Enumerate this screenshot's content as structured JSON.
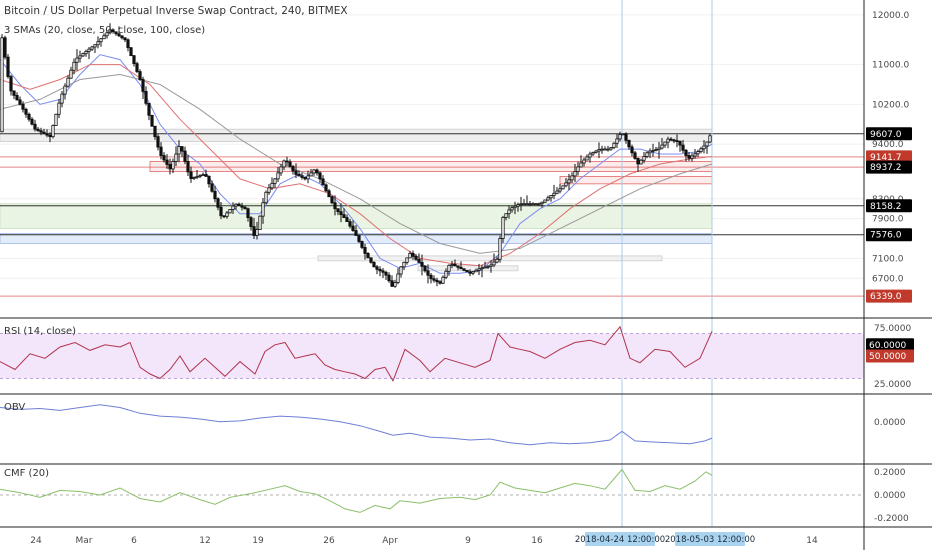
{
  "chart_data": {
    "type": "candlestick",
    "title": "Bitcoin / US Dollar Perpetual Inverse Swap Contract, 240, BITMEX",
    "ma_legend": "3 SMAs (20, close, 50, close, 100, close)",
    "x_labels": [
      "24",
      "Mar",
      "6",
      "12",
      "19",
      "26",
      "Apr",
      "9",
      "16",
      "2018-04-24 12:00:00",
      "2018-05-03 12:00:00",
      "14"
    ],
    "price_ticks": [
      12000.0,
      11000.0,
      10200.0,
      9400.0,
      8300.0,
      7900.0,
      7100.0,
      6700.0
    ],
    "price_ylim": [
      5900,
      12300
    ],
    "price_path": [
      [
        0,
        11800
      ],
      [
        10,
        10500
      ],
      [
        20,
        10200
      ],
      [
        35,
        9700
      ],
      [
        50,
        9550
      ],
      [
        60,
        10300
      ],
      [
        75,
        11100
      ],
      [
        95,
        11400
      ],
      [
        110,
        11700
      ],
      [
        125,
        11500
      ],
      [
        140,
        10700
      ],
      [
        150,
        9900
      ],
      [
        160,
        9200
      ],
      [
        170,
        8900
      ],
      [
        180,
        9400
      ],
      [
        190,
        8700
      ],
      [
        205,
        8800
      ],
      [
        215,
        8300
      ],
      [
        222,
        7900
      ],
      [
        235,
        8200
      ],
      [
        245,
        8100
      ],
      [
        255,
        7500
      ],
      [
        265,
        8400
      ],
      [
        275,
        8700
      ],
      [
        285,
        9100
      ],
      [
        295,
        8800
      ],
      [
        305,
        8700
      ],
      [
        315,
        8900
      ],
      [
        325,
        8500
      ],
      [
        335,
        8100
      ],
      [
        345,
        7900
      ],
      [
        355,
        7600
      ],
      [
        365,
        7200
      ],
      [
        375,
        6900
      ],
      [
        385,
        6800
      ],
      [
        393,
        6500
      ],
      [
        400,
        6900
      ],
      [
        410,
        7200
      ],
      [
        420,
        7000
      ],
      [
        430,
        6700
      ],
      [
        440,
        6600
      ],
      [
        450,
        7000
      ],
      [
        460,
        6900
      ],
      [
        470,
        6800
      ],
      [
        480,
        6900
      ],
      [
        490,
        6950
      ],
      [
        498,
        7100
      ],
      [
        502,
        7900
      ],
      [
        510,
        8100
      ],
      [
        520,
        8200
      ],
      [
        530,
        8200
      ],
      [
        540,
        8200
      ],
      [
        550,
        8350
      ],
      [
        560,
        8500
      ],
      [
        570,
        8700
      ],
      [
        580,
        9000
      ],
      [
        590,
        9200
      ],
      [
        600,
        9300
      ],
      [
        610,
        9300
      ],
      [
        622,
        9650
      ],
      [
        630,
        9300
      ],
      [
        638,
        9000
      ],
      [
        648,
        9250
      ],
      [
        658,
        9300
      ],
      [
        668,
        9500
      ],
      [
        678,
        9450
      ],
      [
        688,
        9100
      ],
      [
        698,
        9250
      ],
      [
        706,
        9400
      ],
      [
        712,
        9650
      ]
    ],
    "sma_paths": [
      {
        "name": "SMA 20",
        "color": "#7a8cf0",
        "points": [
          [
            0,
            11100
          ],
          [
            20,
            10600
          ],
          [
            40,
            10200
          ],
          [
            60,
            10300
          ],
          [
            80,
            10800
          ],
          [
            100,
            11200
          ],
          [
            120,
            11100
          ],
          [
            140,
            10600
          ],
          [
            160,
            9800
          ],
          [
            180,
            9300
          ],
          [
            200,
            9000
          ],
          [
            220,
            8400
          ],
          [
            240,
            8000
          ],
          [
            260,
            8000
          ],
          [
            280,
            8600
          ],
          [
            300,
            8800
          ],
          [
            320,
            8600
          ],
          [
            340,
            8200
          ],
          [
            360,
            7700
          ],
          [
            380,
            7100
          ],
          [
            400,
            6900
          ],
          [
            420,
            7000
          ],
          [
            440,
            6800
          ],
          [
            460,
            6800
          ],
          [
            480,
            6850
          ],
          [
            500,
            7200
          ],
          [
            520,
            7800
          ],
          [
            540,
            8100
          ],
          [
            560,
            8300
          ],
          [
            580,
            8700
          ],
          [
            600,
            9000
          ],
          [
            620,
            9300
          ],
          [
            640,
            9300
          ],
          [
            660,
            9200
          ],
          [
            680,
            9200
          ],
          [
            700,
            9250
          ],
          [
            712,
            9400
          ]
        ]
      },
      {
        "name": "SMA 50",
        "color": "#e07070",
        "points": [
          [
            0,
            10700
          ],
          [
            30,
            10500
          ],
          [
            60,
            10700
          ],
          [
            90,
            11000
          ],
          [
            120,
            11000
          ],
          [
            150,
            10600
          ],
          [
            180,
            9900
          ],
          [
            210,
            9300
          ],
          [
            240,
            8700
          ],
          [
            270,
            8500
          ],
          [
            300,
            8600
          ],
          [
            330,
            8400
          ],
          [
            360,
            8000
          ],
          [
            390,
            7500
          ],
          [
            420,
            7100
          ],
          [
            450,
            7000
          ],
          [
            480,
            6950
          ],
          [
            510,
            7200
          ],
          [
            540,
            7600
          ],
          [
            570,
            8100
          ],
          [
            600,
            8500
          ],
          [
            630,
            8800
          ],
          [
            660,
            9000
          ],
          [
            690,
            9100
          ],
          [
            712,
            9150
          ]
        ]
      },
      {
        "name": "SMA 100",
        "color": "#999999",
        "points": [
          [
            0,
            10100
          ],
          [
            40,
            10300
          ],
          [
            80,
            10700
          ],
          [
            120,
            10800
          ],
          [
            160,
            10600
          ],
          [
            200,
            10100
          ],
          [
            240,
            9500
          ],
          [
            280,
            9000
          ],
          [
            320,
            8700
          ],
          [
            360,
            8300
          ],
          [
            400,
            7800
          ],
          [
            440,
            7400
          ],
          [
            480,
            7200
          ],
          [
            520,
            7300
          ],
          [
            560,
            7700
          ],
          [
            600,
            8100
          ],
          [
            640,
            8500
          ],
          [
            680,
            8800
          ],
          [
            712,
            9000
          ]
        ]
      }
    ],
    "price_tags": [
      {
        "value": 9607.0,
        "label": "9607.0",
        "color": "#000000"
      },
      {
        "value": 9141.7,
        "label": "9141.7",
        "color": "#c0392b"
      },
      {
        "value": 8937.2,
        "label": "8937.2",
        "color": "#000000"
      },
      {
        "value": 8158.2,
        "label": "8158.2",
        "color": "#000000"
      },
      {
        "value": 7576.0,
        "label": "7576.0",
        "color": "#000000"
      },
      {
        "value": 6339.0,
        "label": "6339.0",
        "color": "#c0392b"
      }
    ],
    "zones": [
      {
        "from": 9450,
        "to": 9700,
        "x0": 0,
        "x1": 712,
        "fill": "#eeeeee",
        "stroke": "#cccccc"
      },
      {
        "from": 8850,
        "to": 9050,
        "x0": 150,
        "x1": 712,
        "fill": "#fdecec",
        "stroke": "#e06666"
      },
      {
        "from": 8600,
        "to": 8750,
        "x0": 560,
        "x1": 712,
        "fill": "#fdecec",
        "stroke": "#e06666"
      },
      {
        "from": 7700,
        "to": 8200,
        "x0": 0,
        "x1": 712,
        "fill": "#eaf4e4",
        "stroke": "#c8dfbb"
      },
      {
        "from": 7400,
        "to": 7600,
        "x0": 0,
        "x1": 712,
        "fill": "#e3ecfb",
        "stroke": "#9fb6e6"
      },
      {
        "from": 7050,
        "to": 7150,
        "x0": 318,
        "x1": 662,
        "fill": "#f1f1f1",
        "stroke": "#cccccc"
      },
      {
        "from": 6850,
        "to": 6950,
        "x0": 418,
        "x1": 518,
        "fill": "#f1f1f1",
        "stroke": "#cccccc"
      }
    ],
    "hlines": [
      {
        "value": 9607,
        "color": "#000000"
      },
      {
        "value": 9141.7,
        "color": "#e06666"
      },
      {
        "value": 8937.2,
        "color": "#e06666"
      },
      {
        "value": 8158.2,
        "color": "#000000"
      },
      {
        "value": 7576,
        "color": "#000000"
      },
      {
        "value": 6339,
        "color": "#e06666"
      }
    ],
    "rsi": {
      "label": "RSI (14, close)",
      "ticks": [
        75.0,
        25.0
      ],
      "tick_labels": [
        "75.0000",
        "25.0000"
      ],
      "ylim": [
        18,
        82
      ],
      "band": [
        30,
        70
      ],
      "tags": [
        {
          "value": 60.0,
          "label": "60.0000",
          "color": "#000000"
        },
        {
          "value": 50.0,
          "label": "50.0000",
          "color": "#c0392b"
        }
      ],
      "path": [
        [
          0,
          45
        ],
        [
          15,
          38
        ],
        [
          30,
          52
        ],
        [
          45,
          48
        ],
        [
          60,
          58
        ],
        [
          75,
          62
        ],
        [
          90,
          55
        ],
        [
          105,
          60
        ],
        [
          120,
          58
        ],
        [
          130,
          62
        ],
        [
          140,
          40
        ],
        [
          150,
          34
        ],
        [
          160,
          30
        ],
        [
          170,
          38
        ],
        [
          180,
          50
        ],
        [
          190,
          36
        ],
        [
          205,
          48
        ],
        [
          215,
          40
        ],
        [
          225,
          32
        ],
        [
          240,
          45
        ],
        [
          255,
          34
        ],
        [
          265,
          54
        ],
        [
          275,
          60
        ],
        [
          285,
          62
        ],
        [
          295,
          48
        ],
        [
          305,
          50
        ],
        [
          315,
          52
        ],
        [
          325,
          42
        ],
        [
          335,
          38
        ],
        [
          345,
          36
        ],
        [
          355,
          34
        ],
        [
          365,
          30
        ],
        [
          375,
          38
        ],
        [
          385,
          40
        ],
        [
          393,
          28
        ],
        [
          405,
          56
        ],
        [
          420,
          46
        ],
        [
          430,
          36
        ],
        [
          445,
          48
        ],
        [
          460,
          44
        ],
        [
          475,
          40
        ],
        [
          490,
          46
        ],
        [
          498,
          70
        ],
        [
          510,
          58
        ],
        [
          520,
          56
        ],
        [
          530,
          54
        ],
        [
          545,
          48
        ],
        [
          560,
          56
        ],
        [
          575,
          62
        ],
        [
          590,
          64
        ],
        [
          605,
          60
        ],
        [
          620,
          76
        ],
        [
          630,
          48
        ],
        [
          640,
          44
        ],
        [
          655,
          56
        ],
        [
          670,
          54
        ],
        [
          685,
          40
        ],
        [
          700,
          48
        ],
        [
          712,
          72
        ]
      ]
    },
    "obv": {
      "label": "OBV",
      "ticks": [
        0.0
      ],
      "tick_labels": [
        "0.0000"
      ],
      "ylim": [
        -80,
        50
      ],
      "zero_y": 0,
      "path": [
        [
          0,
          30
        ],
        [
          20,
          26
        ],
        [
          40,
          28
        ],
        [
          60,
          24
        ],
        [
          80,
          30
        ],
        [
          100,
          36
        ],
        [
          120,
          30
        ],
        [
          140,
          18
        ],
        [
          160,
          12
        ],
        [
          180,
          10
        ],
        [
          200,
          6
        ],
        [
          220,
          0
        ],
        [
          240,
          2
        ],
        [
          260,
          8
        ],
        [
          280,
          12
        ],
        [
          300,
          10
        ],
        [
          320,
          6
        ],
        [
          340,
          0
        ],
        [
          360,
          -8
        ],
        [
          380,
          -20
        ],
        [
          393,
          -28
        ],
        [
          410,
          -24
        ],
        [
          430,
          -32
        ],
        [
          450,
          -34
        ],
        [
          470,
          -38
        ],
        [
          490,
          -36
        ],
        [
          510,
          -44
        ],
        [
          530,
          -48
        ],
        [
          550,
          -44
        ],
        [
          570,
          -46
        ],
        [
          590,
          -44
        ],
        [
          610,
          -38
        ],
        [
          622,
          -20
        ],
        [
          635,
          -40
        ],
        [
          650,
          -42
        ],
        [
          670,
          -44
        ],
        [
          690,
          -46
        ],
        [
          705,
          -40
        ],
        [
          712,
          -34
        ]
      ]
    },
    "cmf": {
      "label": "CMF (20)",
      "ticks": [
        0.2,
        0.0,
        -0.2
      ],
      "tick_labels": [
        "0.2000",
        "0.0000",
        "-0.2000"
      ],
      "ylim": [
        -0.25,
        0.25
      ],
      "path": [
        [
          0,
          0.05
        ],
        [
          20,
          0.02
        ],
        [
          40,
          -0.02
        ],
        [
          60,
          0.04
        ],
        [
          80,
          0.03
        ],
        [
          100,
          0.0
        ],
        [
          120,
          0.06
        ],
        [
          140,
          -0.03
        ],
        [
          160,
          -0.06
        ],
        [
          180,
          0.02
        ],
        [
          200,
          -0.04
        ],
        [
          215,
          -0.08
        ],
        [
          230,
          -0.02
        ],
        [
          250,
          0.01
        ],
        [
          270,
          0.05
        ],
        [
          285,
          0.08
        ],
        [
          300,
          0.03
        ],
        [
          315,
          0.01
        ],
        [
          330,
          -0.05
        ],
        [
          345,
          -0.12
        ],
        [
          360,
          -0.15
        ],
        [
          375,
          -0.09
        ],
        [
          390,
          -0.12
        ],
        [
          400,
          -0.05
        ],
        [
          420,
          -0.07
        ],
        [
          440,
          -0.03
        ],
        [
          460,
          -0.02
        ],
        [
          475,
          -0.04
        ],
        [
          490,
          0.0
        ],
        [
          500,
          0.11
        ],
        [
          515,
          0.06
        ],
        [
          530,
          0.04
        ],
        [
          545,
          0.02
        ],
        [
          560,
          0.06
        ],
        [
          575,
          0.1
        ],
        [
          590,
          0.08
        ],
        [
          605,
          0.05
        ],
        [
          622,
          0.22
        ],
        [
          635,
          0.04
        ],
        [
          650,
          0.03
        ],
        [
          665,
          0.08
        ],
        [
          680,
          0.05
        ],
        [
          695,
          0.12
        ],
        [
          706,
          0.2
        ],
        [
          712,
          0.17
        ]
      ]
    },
    "highlight_dates": [
      622,
      712
    ]
  }
}
